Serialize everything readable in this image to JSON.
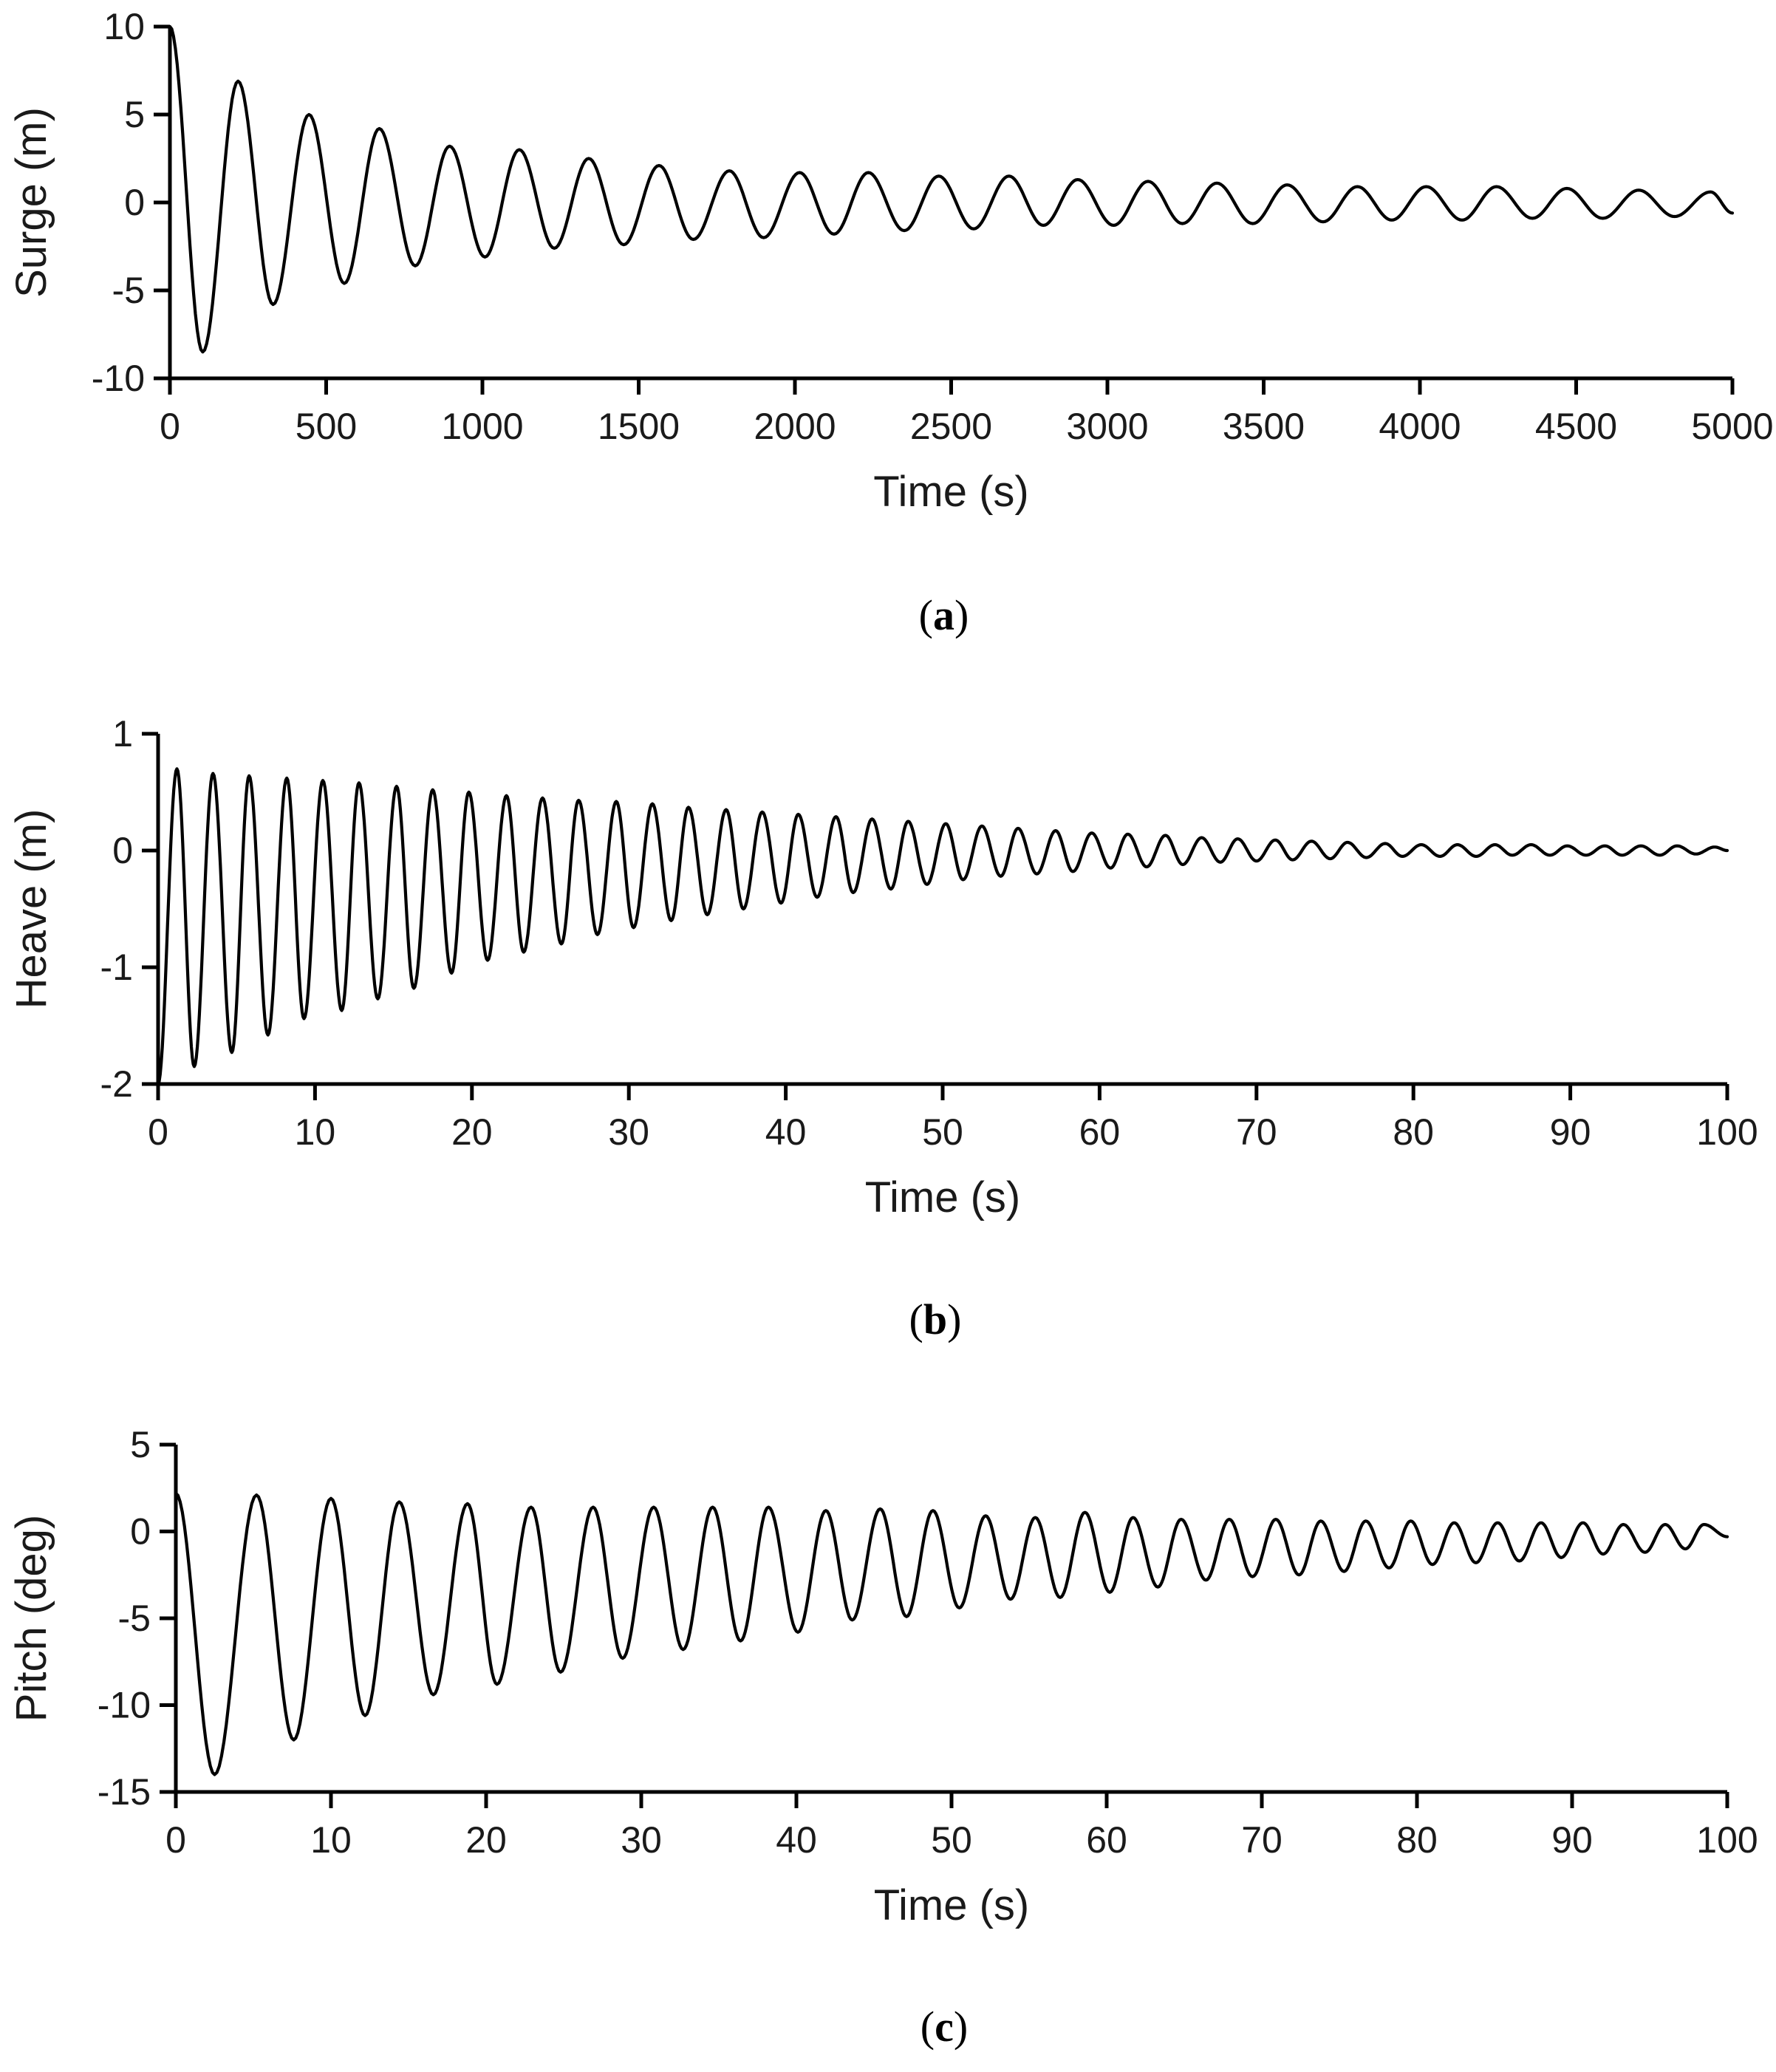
{
  "chart_data": [
    {
      "type": "line",
      "panel": "a",
      "caption_open": "(",
      "caption_letter": "a",
      "caption_close": ")",
      "xlabel": "Time (s)",
      "ylabel": "Surge (m)",
      "xlim": [
        0,
        5000
      ],
      "ylim": [
        -10,
        10
      ],
      "xticks": [
        0,
        500,
        1000,
        1500,
        2000,
        2500,
        3000,
        3500,
        4000,
        4500,
        5000
      ],
      "yticks": [
        10,
        5,
        0,
        -5,
        -10
      ],
      "series": [
        {
          "name": "Surge",
          "x": [
            0,
            105,
            218,
            330,
            445,
            558,
            670,
            785,
            895,
            1008,
            1118,
            1230,
            1340,
            1452,
            1565,
            1675,
            1790,
            1900,
            2015,
            2125,
            2235,
            2350,
            2460,
            2572,
            2685,
            2795,
            2905,
            3020,
            3130,
            3240,
            3350,
            3465,
            3575,
            3690,
            3800,
            3910,
            4020,
            4135,
            4245,
            4360,
            4470,
            4585,
            4700,
            4815,
            4930,
            5000
          ],
          "y": [
            10.0,
            -8.5,
            6.9,
            -5.8,
            5.0,
            -4.6,
            4.2,
            -3.6,
            3.2,
            -3.1,
            3.0,
            -2.6,
            2.5,
            -2.4,
            2.1,
            -2.1,
            1.8,
            -2.0,
            1.7,
            -1.8,
            1.7,
            -1.6,
            1.5,
            -1.5,
            1.5,
            -1.3,
            1.3,
            -1.3,
            1.2,
            -1.2,
            1.1,
            -1.2,
            1.0,
            -1.1,
            0.9,
            -1.0,
            0.9,
            -1.0,
            0.9,
            -0.9,
            0.8,
            -0.9,
            0.7,
            -0.8,
            0.6,
            -0.6
          ]
        }
      ]
    },
    {
      "type": "line",
      "panel": "b",
      "caption_open": "(",
      "caption_letter": "b",
      "caption_close": ")",
      "xlabel": "Time (s)",
      "ylabel": "Heave (m)",
      "xlim": [
        0,
        100
      ],
      "ylim": [
        -2,
        1
      ],
      "xticks": [
        0,
        10,
        20,
        30,
        40,
        50,
        60,
        70,
        80,
        90,
        100
      ],
      "yticks": [
        1,
        0,
        -1,
        -2
      ],
      "series": [
        {
          "name": "Heave",
          "x": [
            0.0,
            1.2,
            2.3,
            3.5,
            4.7,
            5.8,
            7.0,
            8.2,
            9.3,
            10.5,
            11.7,
            12.8,
            14.0,
            15.2,
            16.3,
            17.5,
            18.7,
            19.8,
            21.0,
            22.2,
            23.3,
            24.5,
            25.7,
            26.8,
            28.0,
            29.2,
            30.3,
            31.5,
            32.7,
            33.8,
            35.0,
            36.2,
            37.3,
            38.5,
            39.7,
            40.8,
            42.0,
            43.2,
            44.3,
            45.5,
            46.7,
            47.8,
            49.0,
            50.2,
            51.3,
            52.5,
            53.7,
            54.8,
            56.0,
            57.2,
            58.3,
            59.5,
            60.7,
            61.8,
            63.0,
            64.2,
            65.3,
            66.5,
            67.7,
            68.8,
            70.0,
            71.2,
            72.3,
            73.5,
            74.7,
            75.8,
            77.0,
            78.2,
            79.3,
            80.5,
            81.7,
            82.8,
            84.0,
            85.2,
            86.3,
            87.5,
            88.7,
            89.8,
            91.0,
            92.2,
            93.3,
            94.5,
            95.7,
            96.8,
            98.0,
            99.2,
            100.0
          ],
          "y": [
            -2.0,
            0.7,
            -1.85,
            0.66,
            -1.73,
            0.64,
            -1.58,
            0.62,
            -1.44,
            0.6,
            -1.37,
            0.58,
            -1.27,
            0.55,
            -1.18,
            0.52,
            -1.05,
            0.5,
            -0.94,
            0.47,
            -0.87,
            0.45,
            -0.8,
            0.43,
            -0.72,
            0.42,
            -0.66,
            0.4,
            -0.6,
            0.37,
            -0.55,
            0.35,
            -0.5,
            0.33,
            -0.45,
            0.31,
            -0.4,
            0.29,
            -0.36,
            0.27,
            -0.33,
            0.25,
            -0.29,
            0.23,
            -0.25,
            0.21,
            -0.22,
            0.19,
            -0.2,
            0.17,
            -0.18,
            0.15,
            -0.15,
            0.14,
            -0.14,
            0.13,
            -0.12,
            0.11,
            -0.1,
            0.1,
            -0.09,
            0.09,
            -0.08,
            0.08,
            -0.07,
            0.07,
            -0.06,
            0.06,
            -0.05,
            0.05,
            -0.05,
            0.05,
            -0.05,
            0.05,
            -0.04,
            0.05,
            -0.04,
            0.04,
            -0.04,
            0.04,
            -0.04,
            0.04,
            -0.04,
            0.04,
            -0.03,
            0.03,
            0.0
          ]
        }
      ]
    },
    {
      "type": "line",
      "panel": "c",
      "caption_open": "(",
      "caption_letter": "c",
      "caption_close": ")",
      "xlabel": "Time (s)",
      "ylabel": "Pitch (deg)",
      "xlim": [
        0,
        100
      ],
      "ylim": [
        -15,
        5
      ],
      "xticks": [
        0,
        10,
        20,
        30,
        40,
        50,
        60,
        70,
        80,
        90,
        100
      ],
      "yticks": [
        5,
        0,
        -5,
        -10,
        -15
      ],
      "series": [
        {
          "name": "Pitch",
          "x": [
            0.0,
            2.5,
            5.2,
            7.6,
            10.0,
            12.2,
            14.4,
            16.6,
            18.8,
            20.7,
            22.9,
            24.8,
            26.9,
            28.8,
            30.8,
            32.7,
            34.6,
            36.4,
            38.2,
            40.1,
            41.9,
            43.6,
            45.4,
            47.1,
            48.8,
            50.5,
            52.2,
            53.8,
            55.4,
            57.0,
            58.6,
            60.2,
            61.7,
            63.3,
            64.8,
            66.4,
            67.9,
            69.4,
            70.9,
            72.4,
            73.8,
            75.3,
            76.7,
            78.2,
            79.6,
            81.0,
            82.4,
            83.8,
            85.2,
            86.6,
            88.0,
            89.3,
            90.7,
            92.0,
            93.3,
            94.7,
            96.0,
            97.3,
            98.5,
            100.0
          ],
          "y": [
            2.2,
            -14.0,
            2.1,
            -12.0,
            1.9,
            -10.6,
            1.7,
            -9.4,
            1.6,
            -8.8,
            1.4,
            -8.1,
            1.4,
            -7.3,
            1.4,
            -6.8,
            1.4,
            -6.3,
            1.4,
            -5.8,
            1.2,
            -5.1,
            1.3,
            -4.9,
            1.2,
            -4.4,
            0.9,
            -3.9,
            0.8,
            -3.8,
            1.1,
            -3.5,
            0.8,
            -3.2,
            0.7,
            -2.8,
            0.7,
            -2.6,
            0.7,
            -2.5,
            0.6,
            -2.3,
            0.6,
            -2.1,
            0.6,
            -1.9,
            0.5,
            -1.8,
            0.5,
            -1.7,
            0.5,
            -1.5,
            0.5,
            -1.3,
            0.4,
            -1.2,
            0.4,
            -1.0,
            0.4,
            -0.3
          ]
        }
      ]
    }
  ]
}
